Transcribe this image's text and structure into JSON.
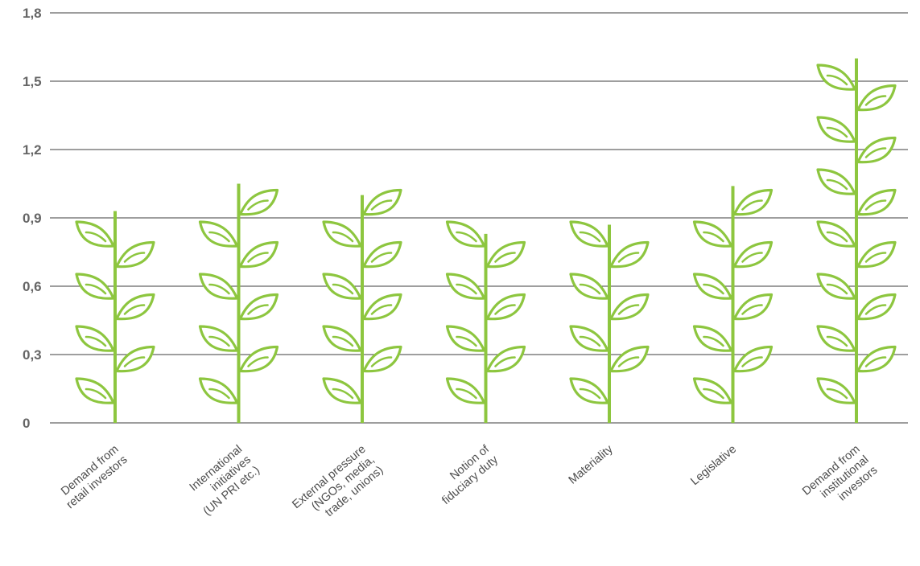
{
  "chart_data": {
    "type": "bar",
    "bar_style": "pictograph-vine",
    "title": "",
    "xlabel": "",
    "ylabel": "",
    "ylim": [
      0,
      1.8
    ],
    "yticks": [
      "0",
      "0,3",
      "0,6",
      "0,9",
      "1,2",
      "1,5",
      "1,8"
    ],
    "grid": true,
    "legend": "none",
    "color": "#8dc63f",
    "categories": [
      [
        "Demand from",
        "retail investors"
      ],
      [
        "International",
        "initiatives",
        "(UN PRI etc.)"
      ],
      [
        "External pressure",
        "(NGOs, media,",
        "trade, unions)"
      ],
      [
        "Notion of",
        "fiduciary duty"
      ],
      [
        "Materiality"
      ],
      [
        "Legislative"
      ],
      [
        "Demand from",
        "institutional",
        "investors"
      ]
    ],
    "values": [
      0.93,
      1.05,
      1.0,
      0.83,
      0.87,
      1.04,
      1.6
    ]
  }
}
